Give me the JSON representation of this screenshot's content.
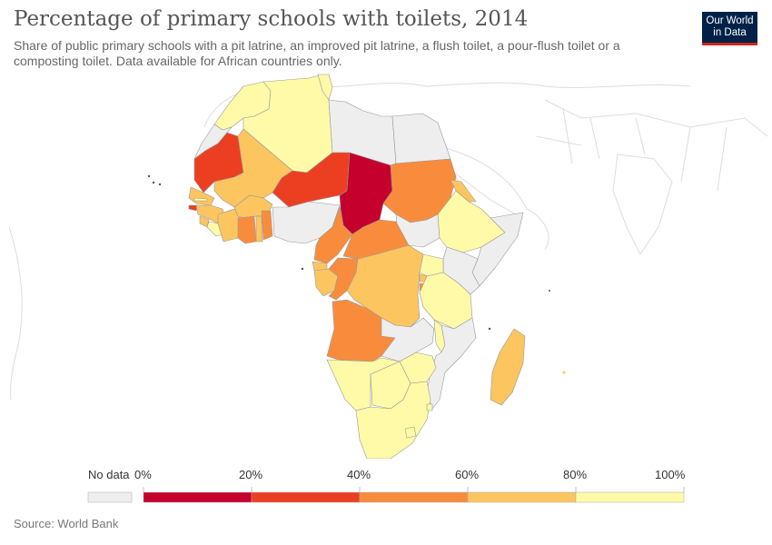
{
  "title": "Percentage of primary schools with toilets, 2014",
  "subtitle": "Share of public primary schools with a pit latrine, an improved pit latrine, a flush toilet, a pour-flush toilet or a composting toilet. Data available for African countries only.",
  "logo": {
    "line1": "Our World",
    "line2": "in Data",
    "bg_color": "#002147",
    "accent_color": "#ce261e"
  },
  "legend": {
    "no_data_label": "No data",
    "no_data_color": "#eeeeee",
    "ticks": [
      "0%",
      "20%",
      "40%",
      "60%",
      "80%",
      "100%"
    ],
    "bins": [
      {
        "min": 0,
        "max": 20,
        "color": "#c5002d"
      },
      {
        "min": 20,
        "max": 40,
        "color": "#ec3f21"
      },
      {
        "min": 40,
        "max": 60,
        "color": "#f98c3c"
      },
      {
        "min": 60,
        "max": 80,
        "color": "#fcc560"
      },
      {
        "min": 80,
        "max": 100,
        "color": "#fefaa8"
      }
    ]
  },
  "source": "Source: World Bank"
}
